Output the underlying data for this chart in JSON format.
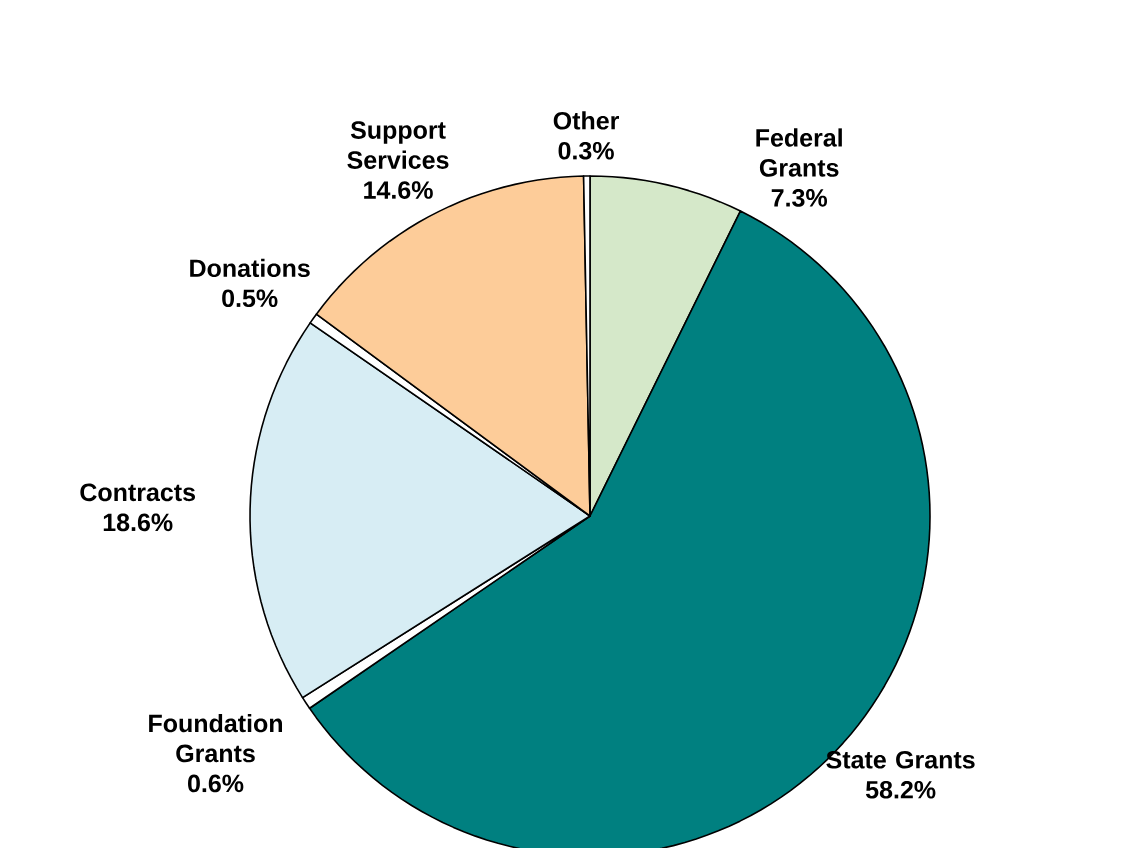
{
  "chart_data": {
    "type": "pie",
    "categories": [
      "Federal Grants",
      "State Grants",
      "Foundation Grants",
      "Contracts",
      "Donations",
      "Support Services",
      "Other"
    ],
    "values": [
      7.3,
      58.2,
      0.6,
      18.6,
      0.5,
      14.6,
      0.3
    ],
    "value_labels": [
      "7.3%",
      "58.2%",
      "0.6%",
      "18.6%",
      "0.5%",
      "14.6%",
      "0.3%"
    ],
    "colors": [
      "#d5e8c9",
      "#008080",
      "#ffffff",
      "#d7edf4",
      "#ffffff",
      "#fdcc99",
      "#ffffff"
    ]
  }
}
